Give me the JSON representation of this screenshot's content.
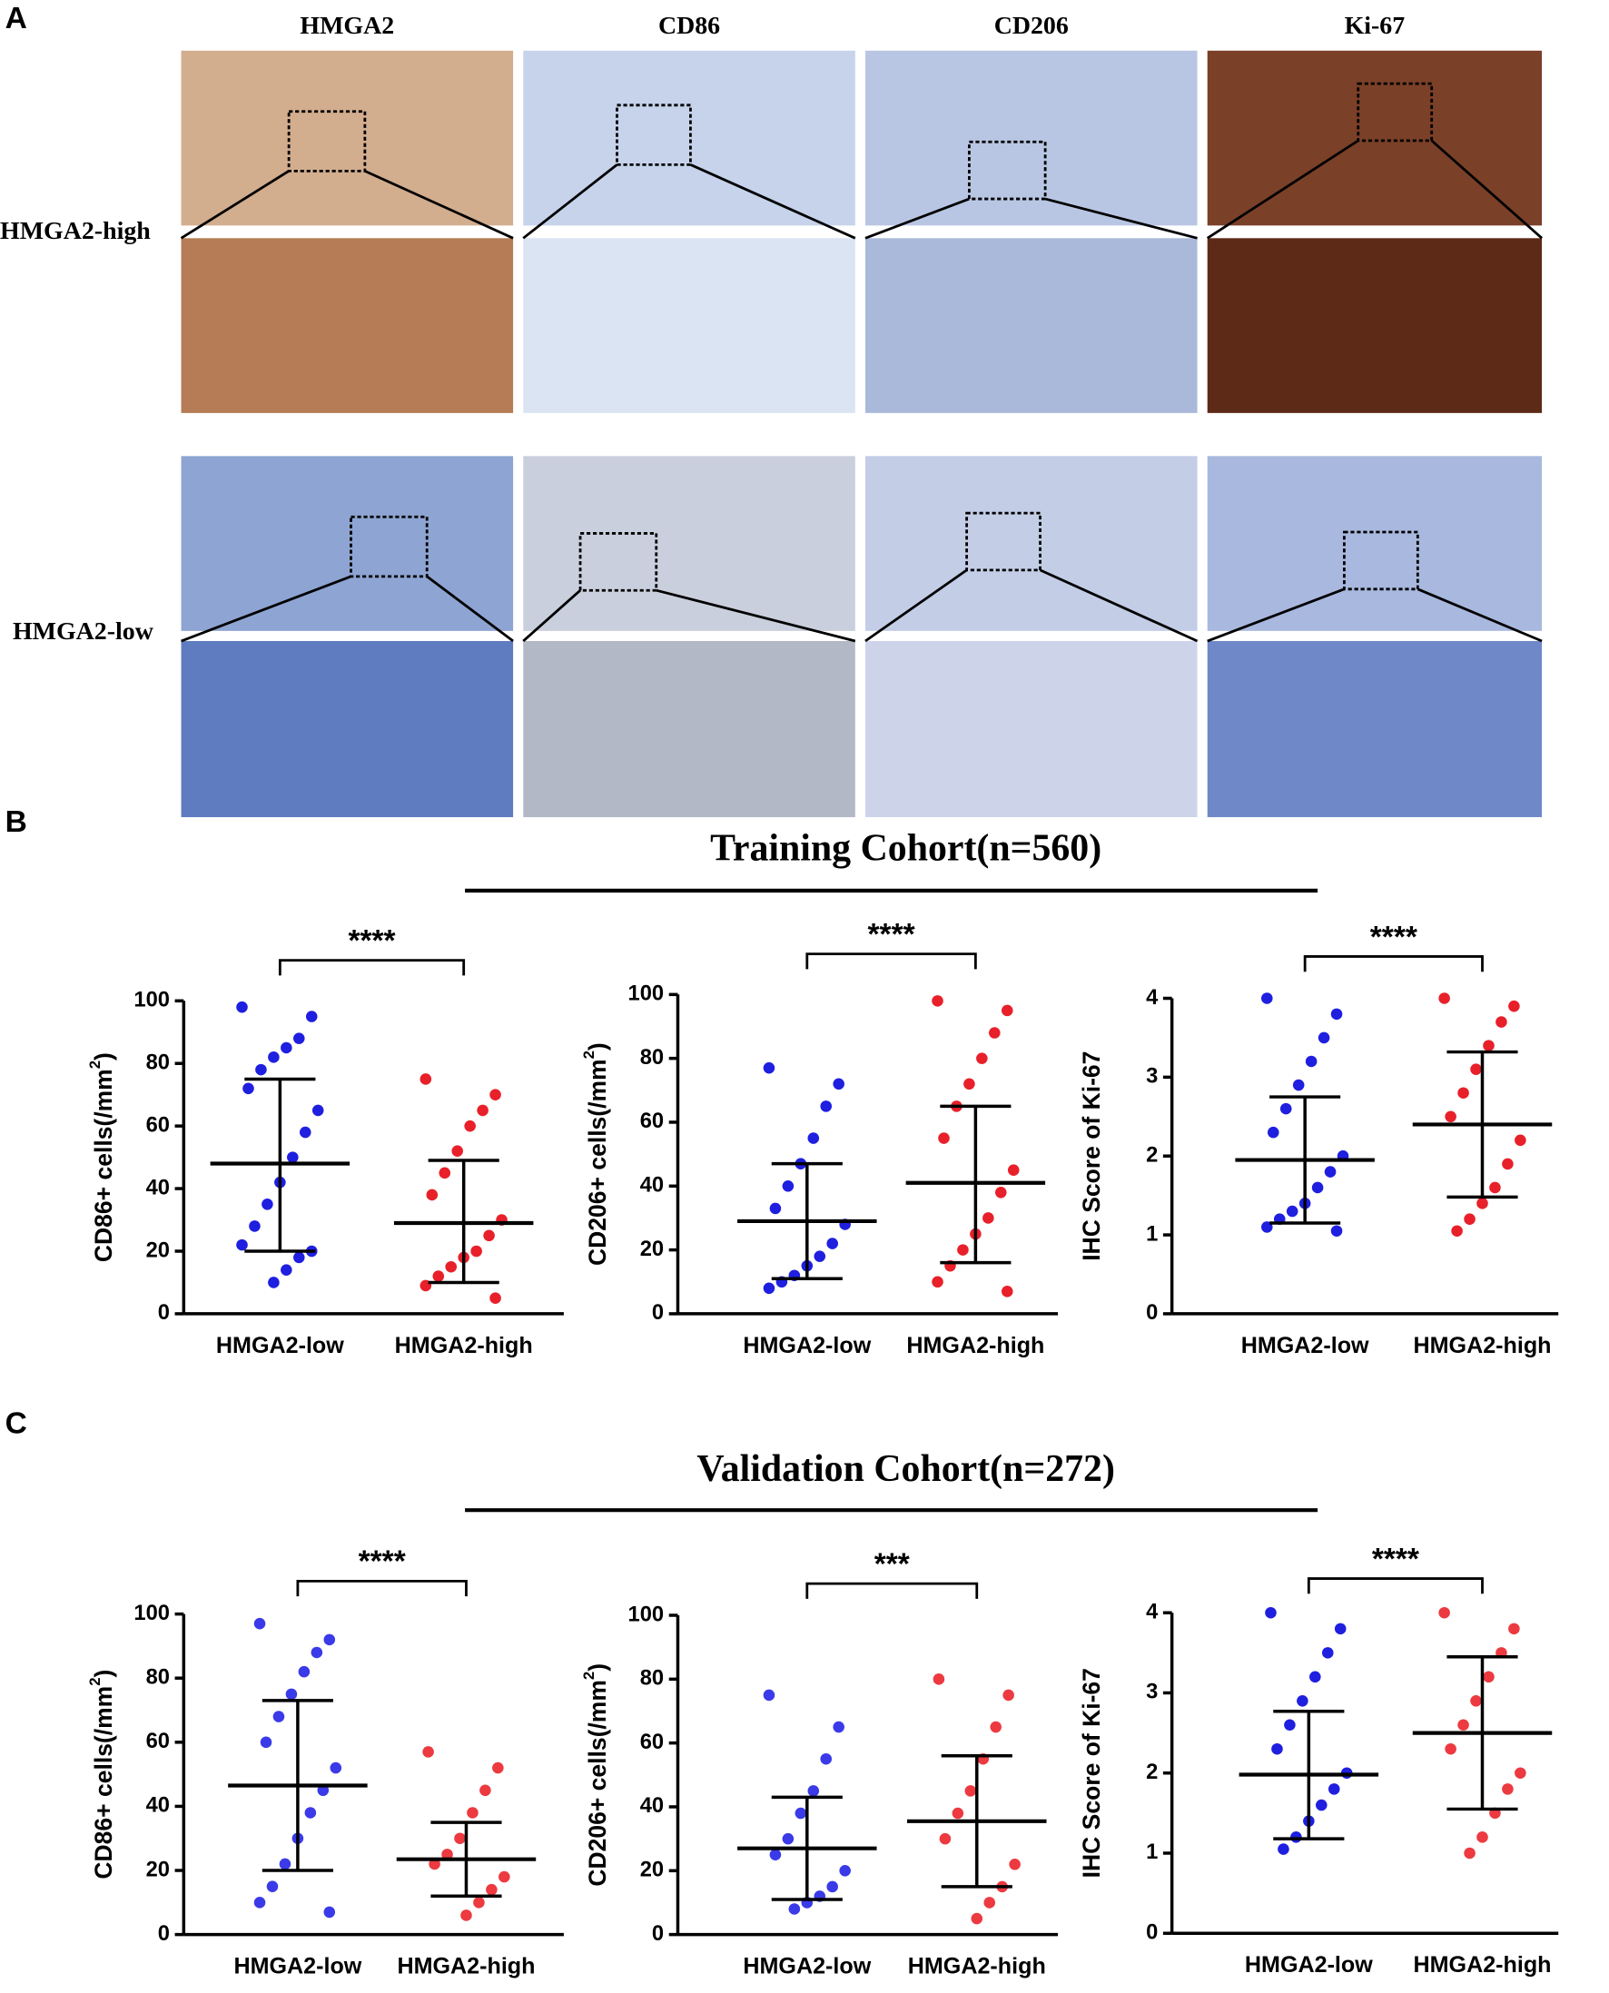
{
  "panel_a": {
    "label": "A",
    "columns": [
      "HMGA2",
      "CD86",
      "CD206",
      "Ki-67"
    ],
    "rows": [
      "HMGA2-high",
      "HMGA2-low"
    ]
  },
  "panel_b": {
    "label": "B",
    "title": "Training Cohort(n=560)"
  },
  "panel_c": {
    "label": "C",
    "title": "Validation Cohort(n=272)"
  },
  "chart_data": [
    {
      "type": "dot_plot",
      "ylabel": [
        "CD86+ cells(/mm",
        "2",
        ")"
      ],
      "categories": [
        "HMGA2-low",
        "HMGA2-high"
      ],
      "ylim": [
        0,
        100
      ],
      "yticks": [
        0,
        20,
        40,
        60,
        80,
        100
      ],
      "annotation": "****",
      "series": [
        {
          "color": "#1f1fe0",
          "points": [
            98,
            95,
            88,
            85,
            82,
            78,
            72,
            65,
            58,
            50,
            42,
            35,
            28,
            22,
            20,
            18,
            14,
            10
          ],
          "mean": 48,
          "upper": 75,
          "lower": 20
        },
        {
          "color": "#e8202a",
          "points": [
            75,
            70,
            65,
            60,
            52,
            45,
            38,
            30,
            25,
            20,
            18,
            15,
            12,
            9,
            5
          ],
          "mean": 29,
          "upper": 49,
          "lower": 10
        }
      ]
    },
    {
      "type": "dot_plot",
      "ylabel": [
        "CD206+ cells(/mm",
        "2",
        ")"
      ],
      "categories": [
        "HMGA2-low",
        "HMGA2-high"
      ],
      "ylim": [
        0,
        100
      ],
      "yticks": [
        0,
        20,
        40,
        60,
        80,
        100
      ],
      "annotation": "****",
      "series": [
        {
          "color": "#1f1fe0",
          "points": [
            77,
            72,
            65,
            55,
            47,
            40,
            33,
            28,
            22,
            18,
            15,
            12,
            10,
            8
          ],
          "mean": 29,
          "upper": 47,
          "lower": 11
        },
        {
          "color": "#e8202a",
          "points": [
            98,
            95,
            88,
            80,
            72,
            65,
            55,
            45,
            38,
            30,
            25,
            20,
            15,
            10,
            7
          ],
          "mean": 41,
          "upper": 65,
          "lower": 16
        }
      ]
    },
    {
      "type": "dot_plot",
      "ylabel": [
        "IHC Score of Ki-67"
      ],
      "categories": [
        "HMGA2-low",
        "HMGA2-high"
      ],
      "ylim": [
        0,
        4
      ],
      "yticks": [
        0,
        1,
        2,
        3,
        4
      ],
      "annotation": "****",
      "series": [
        {
          "color": "#1f1fe0",
          "points": [
            4.0,
            3.8,
            3.5,
            3.2,
            2.9,
            2.6,
            2.3,
            2.0,
            1.8,
            1.6,
            1.4,
            1.3,
            1.2,
            1.1,
            1.05
          ],
          "mean": 1.95,
          "upper": 2.75,
          "lower": 1.15
        },
        {
          "color": "#e8202a",
          "points": [
            4.0,
            3.9,
            3.7,
            3.4,
            3.1,
            2.8,
            2.5,
            2.2,
            1.9,
            1.6,
            1.4,
            1.2,
            1.05
          ],
          "mean": 2.4,
          "upper": 3.32,
          "lower": 1.48
        }
      ]
    },
    {
      "type": "dot_plot",
      "ylabel": [
        "CD86+ cells(/mm",
        "2",
        ")"
      ],
      "categories": [
        "HMGA2-low",
        "HMGA2-high"
      ],
      "ylim": [
        0,
        100
      ],
      "yticks": [
        0,
        20,
        40,
        60,
        80,
        100
      ],
      "annotation": "****",
      "series": [
        {
          "color": "#3a3ae8",
          "points": [
            97,
            92,
            88,
            82,
            75,
            68,
            60,
            52,
            45,
            38,
            30,
            22,
            15,
            10,
            7
          ],
          "mean": 46.5,
          "upper": 73,
          "lower": 20
        },
        {
          "color": "#ec3a40",
          "points": [
            57,
            52,
            45,
            38,
            30,
            25,
            22,
            18,
            14,
            10,
            6
          ],
          "mean": 23.5,
          "upper": 35,
          "lower": 12
        }
      ]
    },
    {
      "type": "dot_plot",
      "ylabel": [
        "CD206+ cells(/mm",
        "2",
        ")"
      ],
      "categories": [
        "HMGA2-low",
        "HMGA2-high"
      ],
      "ylim": [
        0,
        100
      ],
      "yticks": [
        0,
        20,
        40,
        60,
        80,
        100
      ],
      "annotation": "***",
      "series": [
        {
          "color": "#3a3ae8",
          "points": [
            75,
            65,
            55,
            45,
            38,
            30,
            25,
            20,
            15,
            12,
            10,
            8
          ],
          "mean": 27,
          "upper": 43,
          "lower": 11
        },
        {
          "color": "#ec3a40",
          "points": [
            80,
            75,
            65,
            55,
            45,
            38,
            30,
            22,
            15,
            10,
            5
          ],
          "mean": 35.5,
          "upper": 56,
          "lower": 15
        }
      ]
    },
    {
      "type": "dot_plot",
      "ylabel": [
        "IHC Score of Ki-67"
      ],
      "categories": [
        "HMGA2-low",
        "HMGA2-high"
      ],
      "ylim": [
        0,
        4
      ],
      "yticks": [
        0,
        1,
        2,
        3,
        4
      ],
      "annotation": "****",
      "series": [
        {
          "color": "#1f1fe0",
          "points": [
            4.0,
            3.8,
            3.5,
            3.2,
            2.9,
            2.6,
            2.3,
            2.0,
            1.8,
            1.6,
            1.4,
            1.2,
            1.05
          ],
          "mean": 1.98,
          "upper": 2.77,
          "lower": 1.18
        },
        {
          "color": "#ec3a40",
          "points": [
            4.0,
            3.8,
            3.5,
            3.2,
            2.9,
            2.6,
            2.3,
            2.0,
            1.8,
            1.5,
            1.2,
            1.0
          ],
          "mean": 2.5,
          "upper": 3.45,
          "lower": 1.55
        }
      ]
    }
  ]
}
